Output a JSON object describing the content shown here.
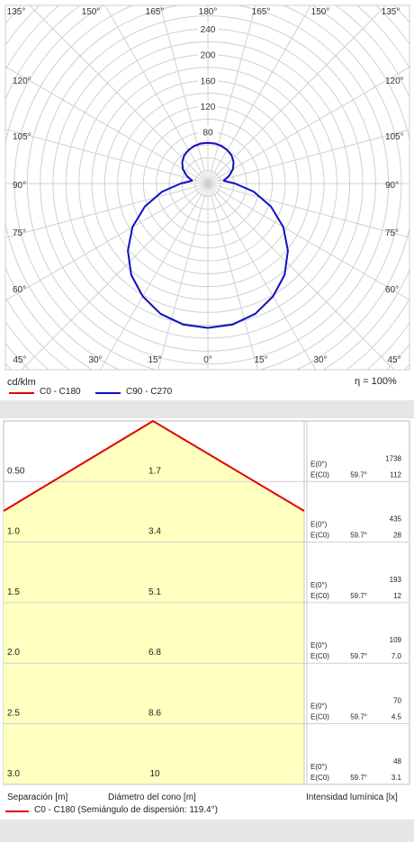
{
  "polar": {
    "angle_labels_top": [
      "135°",
      "150°",
      "165°",
      "180°",
      "165°",
      "150°",
      "135°"
    ],
    "angle_labels_side": [
      "120°",
      "105°",
      "90°",
      "75°",
      "60°"
    ],
    "angle_labels_bottom": [
      "45°",
      "30°",
      "15°",
      "0°",
      "15°",
      "30°",
      "45°"
    ],
    "radial_labels": [
      "240",
      "200",
      "160",
      "120",
      "80"
    ],
    "unit": "cd/klm",
    "efficiency": "η = 100%",
    "legend": [
      {
        "label": "C0 - C180",
        "color": "#e00000"
      },
      {
        "label": "C90 - C270",
        "color": "#1010c0"
      }
    ]
  },
  "chart_data": [
    {
      "type": "polar",
      "unit": "cd/klm",
      "rmax": 240,
      "radial_ticks": [
        80,
        120,
        160,
        200,
        240
      ],
      "angle_ticks_deg": [
        0,
        15,
        30,
        45,
        60,
        75,
        90,
        105,
        120,
        135,
        150,
        165,
        180
      ],
      "series": [
        {
          "name": "C90 - C270",
          "color": "#1010c0",
          "points": [
            [
              0,
              224
            ],
            [
              10,
              222
            ],
            [
              20,
              215
            ],
            [
              30,
              202
            ],
            [
              40,
              185
            ],
            [
              50,
              162
            ],
            [
              60,
              135
            ],
            [
              70,
              104
            ],
            [
              80,
              72
            ],
            [
              90,
              42
            ],
            [
              100,
              25
            ],
            [
              110,
              35
            ],
            [
              120,
              45
            ],
            [
              130,
              52
            ],
            [
              140,
              57
            ],
            [
              150,
              60
            ],
            [
              160,
              62
            ],
            [
              170,
              63
            ],
            [
              180,
              63
            ]
          ]
        },
        {
          "name": "C0 - C180",
          "color": "#e00000",
          "points": []
        }
      ]
    },
    {
      "type": "table",
      "title": "cone",
      "max_distance": 3.0,
      "rows": [
        {
          "sep": "0.50",
          "diam": "1.7",
          "e0": "1738",
          "ec0": "112",
          "angle": "59.7°"
        },
        {
          "sep": "1.0",
          "diam": "3.4",
          "e0": "435",
          "ec0": "28",
          "angle": "59.7°"
        },
        {
          "sep": "1.5",
          "diam": "5.1",
          "e0": "193",
          "ec0": "12",
          "angle": "59.7°"
        },
        {
          "sep": "2.0",
          "diam": "6.8",
          "e0": "109",
          "ec0": "7.0",
          "angle": "59.7°"
        },
        {
          "sep": "2.5",
          "diam": "8.6",
          "e0": "70",
          "ec0": "4.5",
          "angle": "59.7°"
        },
        {
          "sep": "3.0",
          "diam": "10",
          "e0": "48",
          "ec0": "3.1",
          "angle": "59.7°"
        }
      ]
    }
  ],
  "cone": {
    "e0_label": "E(0°)",
    "ec0_label": "E(C0)",
    "col_sep": "Separación [m]",
    "col_diam": "Diámetro del cono [m]",
    "col_int": "Intensidad lumínica [lx]",
    "legend": "C0 - C180 (Semiángulo de dispersión: 119.4°)",
    "legend_color": "#e00000"
  }
}
